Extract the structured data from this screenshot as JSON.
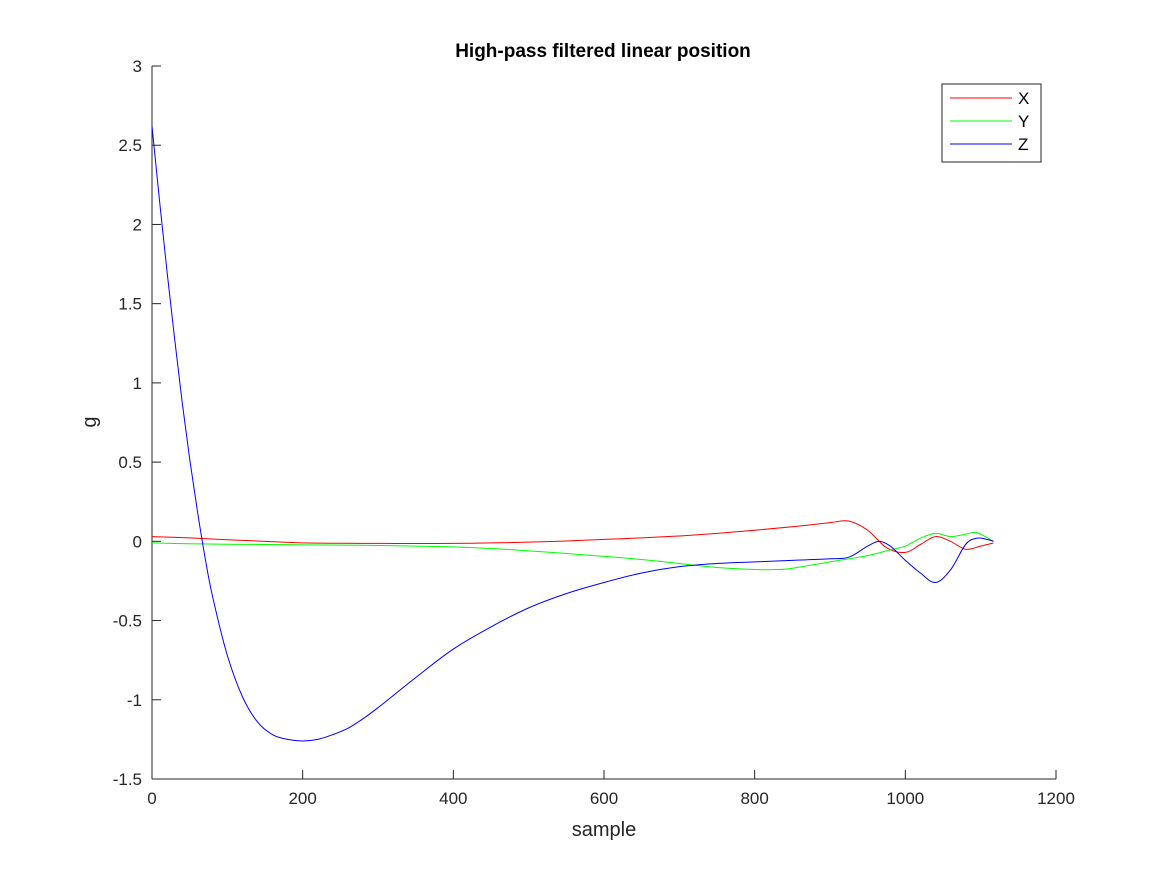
{
  "chart_data": {
    "type": "line",
    "title": "High-pass filtered linear position",
    "xlabel": "sample",
    "ylabel": "g",
    "xlim": [
      0,
      1200
    ],
    "ylim": [
      -1.5,
      3
    ],
    "xticks": [
      0,
      200,
      400,
      600,
      800,
      1000,
      1200
    ],
    "xtick_labels": [
      "0",
      "200",
      "400",
      "600",
      "800",
      "1000",
      "1200"
    ],
    "yticks": [
      -1.5,
      -1,
      -0.5,
      0,
      0.5,
      1,
      1.5,
      2,
      2.5,
      3
    ],
    "ytick_labels": [
      "-1.5",
      "-1",
      "-0.5",
      "0",
      "0.5",
      "1",
      "1.5",
      "2",
      "2.5",
      "3"
    ],
    "grid": false,
    "legend_position": "top-right",
    "series": [
      {
        "name": "X",
        "color": "#ff0000",
        "x": [
          0,
          50,
          100,
          150,
          200,
          250,
          300,
          350,
          400,
          450,
          500,
          550,
          600,
          650,
          700,
          750,
          800,
          850,
          900,
          925,
          950,
          975,
          1000,
          1020,
          1040,
          1060,
          1080,
          1100,
          1117
        ],
        "y": [
          0.03,
          0.022,
          0.01,
          0.0,
          -0.01,
          -0.012,
          -0.013,
          -0.014,
          -0.013,
          -0.01,
          -0.005,
          0.002,
          0.012,
          0.022,
          0.034,
          0.05,
          0.07,
          0.092,
          0.118,
          0.128,
          0.07,
          -0.04,
          -0.07,
          -0.02,
          0.03,
          0.0,
          -0.05,
          -0.03,
          -0.01
        ]
      },
      {
        "name": "Y",
        "color": "#00ff00",
        "x": [
          0,
          50,
          100,
          150,
          200,
          250,
          300,
          350,
          400,
          450,
          500,
          550,
          600,
          650,
          700,
          750,
          800,
          830,
          850,
          900,
          950,
          975,
          1000,
          1020,
          1040,
          1060,
          1080,
          1095,
          1117
        ],
        "y": [
          -0.01,
          -0.015,
          -0.018,
          -0.02,
          -0.022,
          -0.024,
          -0.026,
          -0.03,
          -0.035,
          -0.045,
          -0.06,
          -0.077,
          -0.095,
          -0.115,
          -0.14,
          -0.165,
          -0.178,
          -0.178,
          -0.17,
          -0.13,
          -0.09,
          -0.06,
          -0.03,
          0.02,
          0.05,
          0.03,
          0.045,
          0.055,
          0.0
        ]
      },
      {
        "name": "Z",
        "color": "#0000ff",
        "x": [
          0,
          10,
          20,
          30,
          40,
          50,
          60,
          70,
          80,
          100,
          120,
          140,
          160,
          180,
          200,
          220,
          240,
          260,
          280,
          300,
          350,
          400,
          450,
          500,
          550,
          600,
          650,
          700,
          750,
          800,
          850,
          900,
          925,
          950,
          965,
          980,
          1000,
          1020,
          1040,
          1060,
          1080,
          1095,
          1110,
          1117
        ],
        "y": [
          2.62,
          2.15,
          1.7,
          1.28,
          0.88,
          0.52,
          0.2,
          -0.09,
          -0.34,
          -0.72,
          -0.98,
          -1.14,
          -1.22,
          -1.25,
          -1.26,
          -1.25,
          -1.22,
          -1.18,
          -1.12,
          -1.05,
          -0.86,
          -0.68,
          -0.54,
          -0.42,
          -0.33,
          -0.26,
          -0.2,
          -0.16,
          -0.14,
          -0.13,
          -0.12,
          -0.11,
          -0.1,
          -0.03,
          0.0,
          -0.03,
          -0.12,
          -0.2,
          -0.26,
          -0.18,
          -0.02,
          0.02,
          0.01,
          0.0
        ]
      }
    ]
  }
}
